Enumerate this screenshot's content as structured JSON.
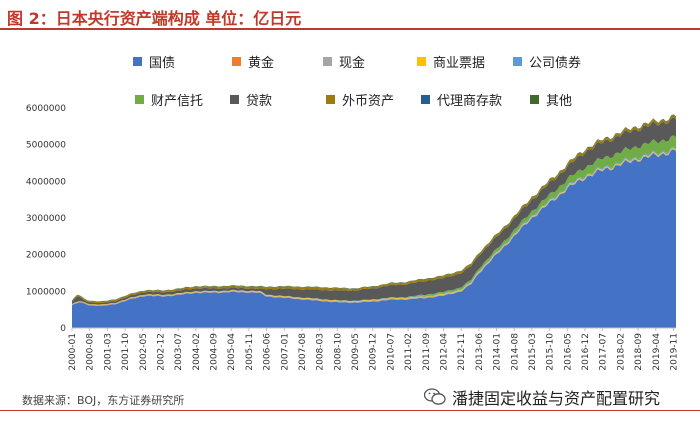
{
  "title": "图 2：日本央行资产端构成  单位：亿日元",
  "source": "数据来源：BOJ，东方证券研究所",
  "watermark": "潘捷固定收益与资产配置研究",
  "colors": {
    "accent": "#c0392b"
  },
  "chart_data": {
    "type": "area",
    "stacked": true,
    "ylim": [
      0,
      6000000
    ],
    "yticks": [
      0,
      1000000,
      2000000,
      3000000,
      4000000,
      5000000,
      6000000
    ],
    "x_range": [
      "2000-01",
      "2019-12"
    ],
    "x_ticks": [
      "2000-01",
      "2000-08",
      "2001-03",
      "2001-10",
      "2002-05",
      "2002-12",
      "2003-07",
      "2004-02",
      "2004-09",
      "2005-04",
      "2005-11",
      "2006-06",
      "2007-01",
      "2007-08",
      "2008-03",
      "2008-10",
      "2009-05",
      "2009-12",
      "2010-07",
      "2011-02",
      "2011-09",
      "2012-04",
      "2012-11",
      "2013-06",
      "2014-01",
      "2014-08",
      "2015-03",
      "2015-10",
      "2016-05",
      "2016-12",
      "2017-07",
      "2018-02",
      "2018-09",
      "2019-04",
      "2019-11"
    ],
    "legend_position": "top",
    "series": [
      {
        "name": "国债",
        "color": "#4472c4",
        "points": [
          [
            "2000-01",
            620000
          ],
          [
            "2000-04",
            700000
          ],
          [
            "2000-08",
            620000
          ],
          [
            "2001-01",
            600000
          ],
          [
            "2001-06",
            650000
          ],
          [
            "2002-01",
            800000
          ],
          [
            "2002-06",
            880000
          ],
          [
            "2003-01",
            860000
          ],
          [
            "2003-07",
            900000
          ],
          [
            "2004-02",
            960000
          ],
          [
            "2004-09",
            960000
          ],
          [
            "2005-04",
            980000
          ],
          [
            "2005-11",
            970000
          ],
          [
            "2006-03",
            960000
          ],
          [
            "2006-06",
            860000
          ],
          [
            "2007-01",
            820000
          ],
          [
            "2007-08",
            780000
          ],
          [
            "2008-03",
            740000
          ],
          [
            "2008-10",
            700000
          ],
          [
            "2009-05",
            690000
          ],
          [
            "2009-12",
            720000
          ],
          [
            "2010-07",
            770000
          ],
          [
            "2011-02",
            780000
          ],
          [
            "2011-09",
            820000
          ],
          [
            "2012-04",
            880000
          ],
          [
            "2012-11",
            1000000
          ],
          [
            "2013-03",
            1200000
          ],
          [
            "2013-06",
            1500000
          ],
          [
            "2014-01",
            2000000
          ],
          [
            "2014-08",
            2500000
          ],
          [
            "2015-03",
            3000000
          ],
          [
            "2015-10",
            3400000
          ],
          [
            "2016-05",
            3800000
          ],
          [
            "2016-12",
            4100000
          ],
          [
            "2017-07",
            4300000
          ],
          [
            "2018-02",
            4450000
          ],
          [
            "2018-09",
            4600000
          ],
          [
            "2019-04",
            4700000
          ],
          [
            "2019-12",
            4830000
          ]
        ]
      },
      {
        "name": "黄金",
        "color": "#ed7d31",
        "points": [
          [
            "2000-01",
            5000
          ],
          [
            "2019-12",
            5000
          ]
        ]
      },
      {
        "name": "现金",
        "color": "#a5a5a5",
        "points": [
          [
            "2000-01",
            20000
          ],
          [
            "2019-12",
            20000
          ]
        ]
      },
      {
        "name": "商业票据",
        "color": "#ffc000",
        "points": [
          [
            "2000-01",
            10000
          ],
          [
            "2008-10",
            20000
          ],
          [
            "2010-01",
            20000
          ],
          [
            "2013-01",
            20000
          ],
          [
            "2019-12",
            20000
          ]
        ]
      },
      {
        "name": "公司债券",
        "color": "#5b9bd5",
        "points": [
          [
            "2000-01",
            0
          ],
          [
            "2009-01",
            10000
          ],
          [
            "2013-01",
            30000
          ],
          [
            "2019-12",
            30000
          ]
        ]
      },
      {
        "name": "财产信托",
        "color": "#70ad47",
        "points": [
          [
            "2000-01",
            0
          ],
          [
            "2010-12",
            0
          ],
          [
            "2011-06",
            20000
          ],
          [
            "2013-01",
            40000
          ],
          [
            "2014-01",
            70000
          ],
          [
            "2015-01",
            110000
          ],
          [
            "2016-01",
            160000
          ],
          [
            "2017-01",
            220000
          ],
          [
            "2018-01",
            270000
          ],
          [
            "2019-01",
            300000
          ],
          [
            "2019-12",
            310000
          ]
        ]
      },
      {
        "name": "贷款",
        "color": "#595959",
        "points": [
          [
            "2000-01",
            60000
          ],
          [
            "2000-03",
            150000
          ],
          [
            "2000-06",
            50000
          ],
          [
            "2001-01",
            40000
          ],
          [
            "2002-01",
            60000
          ],
          [
            "2003-01",
            70000
          ],
          [
            "2004-01",
            80000
          ],
          [
            "2005-01",
            70000
          ],
          [
            "2006-03",
            60000
          ],
          [
            "2006-06",
            150000
          ],
          [
            "2007-01",
            200000
          ],
          [
            "2008-03",
            250000
          ],
          [
            "2009-05",
            280000
          ],
          [
            "2009-12",
            300000
          ],
          [
            "2010-07",
            330000
          ],
          [
            "2011-02",
            350000
          ],
          [
            "2011-09",
            370000
          ],
          [
            "2012-04",
            380000
          ],
          [
            "2012-11",
            390000
          ],
          [
            "2013-06",
            360000
          ],
          [
            "2014-01",
            330000
          ],
          [
            "2014-08",
            310000
          ],
          [
            "2015-03",
            310000
          ],
          [
            "2015-10",
            320000
          ],
          [
            "2016-05",
            340000
          ],
          [
            "2016-12",
            420000
          ],
          [
            "2017-07",
            440000
          ],
          [
            "2018-02",
            460000
          ],
          [
            "2018-09",
            470000
          ],
          [
            "2019-04",
            480000
          ],
          [
            "2019-12",
            490000
          ]
        ]
      },
      {
        "name": "外币资产",
        "color": "#9c7c0c",
        "points": [
          [
            "2000-01",
            30000
          ],
          [
            "2008-10",
            60000
          ],
          [
            "2009-05",
            40000
          ],
          [
            "2012-01",
            50000
          ],
          [
            "2019-12",
            60000
          ]
        ]
      },
      {
        "name": "代理商存款",
        "color": "#255e91",
        "points": [
          [
            "2000-01",
            2000
          ],
          [
            "2019-12",
            2000
          ]
        ]
      },
      {
        "name": "其他",
        "color": "#43682b",
        "points": [
          [
            "2000-01",
            10000
          ],
          [
            "2019-12",
            20000
          ]
        ]
      }
    ]
  }
}
